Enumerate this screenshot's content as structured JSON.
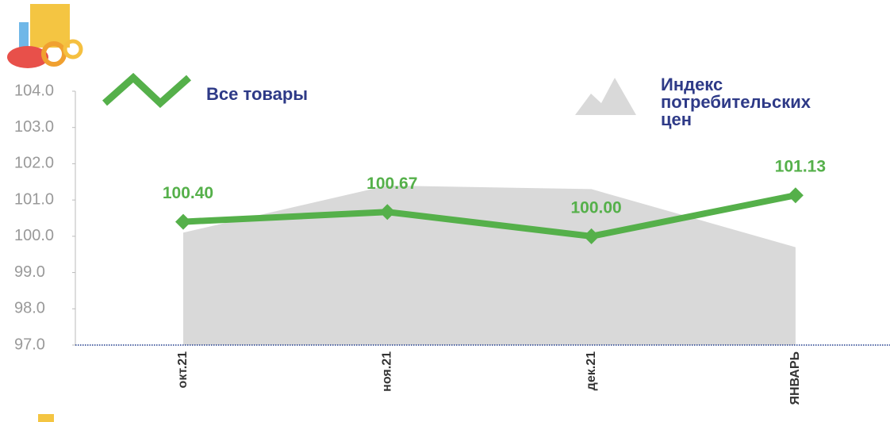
{
  "chart_data": {
    "type": "line",
    "categories": [
      "окт.21",
      "ноя.21",
      "дек.21",
      "ЯНВАРЬ"
    ],
    "series": [
      {
        "name": "Индекс потребительских цен",
        "type": "area",
        "color": "#d9d9d9",
        "values": [
          100.1,
          101.4,
          101.3,
          99.7
        ]
      },
      {
        "name": "Все товары",
        "type": "line",
        "color": "#55b04a",
        "values": [
          100.4,
          100.67,
          100.0,
          101.13
        ],
        "value_labels": [
          "100.40",
          "100.67",
          "100.00",
          "101.13"
        ]
      }
    ],
    "ylim": [
      97,
      104
    ],
    "yticks": [
      {
        "value": 97,
        "label": "97.0"
      },
      {
        "value": 98,
        "label": "98.0"
      },
      {
        "value": 99,
        "label": "99.0"
      },
      {
        "value": 100,
        "label": "100.0"
      },
      {
        "value": 101,
        "label": "101.0"
      },
      {
        "value": 102,
        "label": "102.0"
      },
      {
        "value": 103,
        "label": "103.0"
      },
      {
        "value": 104,
        "label": "104.0"
      }
    ]
  }
}
